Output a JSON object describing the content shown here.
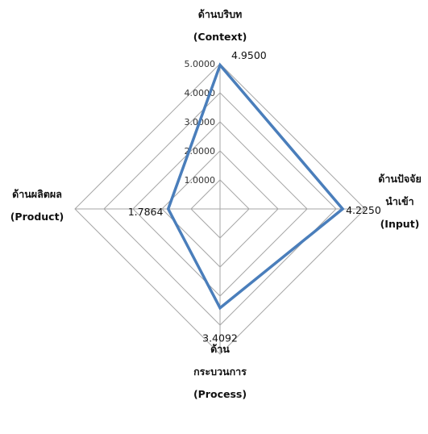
{
  "chart_data": {
    "type": "radar",
    "axes": [
      {
        "lines": [
          "ด้านบริบท",
          "(Context)"
        ],
        "value": "4.9500",
        "v": 4.95
      },
      {
        "lines": [
          "ด้านปัจจัย",
          "นำเข้า",
          "(Input)"
        ],
        "value": "4.2250",
        "v": 4.225
      },
      {
        "lines": [
          "ด้าน",
          "กระบวนการ",
          "(Process)"
        ],
        "value": "3.4092",
        "v": 3.4092
      },
      {
        "lines": [
          "ด้านผลิตผล",
          "(Product)"
        ],
        "value": "1.7864",
        "v": 1.7864
      }
    ],
    "ticks": [
      "1.0000",
      "2.0000",
      "3.0000",
      "4.0000",
      "5.0000"
    ],
    "rlim": [
      0,
      5
    ],
    "grid": true,
    "legend": "none",
    "series_color": "#4a7ebb",
    "grid_color": "#a6a6a6"
  }
}
